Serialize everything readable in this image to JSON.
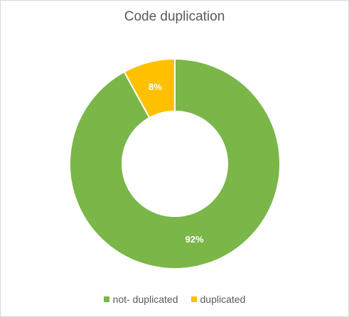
{
  "chart_data": {
    "type": "pie",
    "variant": "donut",
    "title": "Code duplication",
    "categories": [
      "not- duplicated",
      "duplicated"
    ],
    "values": [
      92,
      8
    ],
    "data_labels": [
      "92%",
      "8%"
    ],
    "colors": [
      "#7ab648",
      "#ffc000"
    ],
    "legend_placement": "bottom"
  }
}
